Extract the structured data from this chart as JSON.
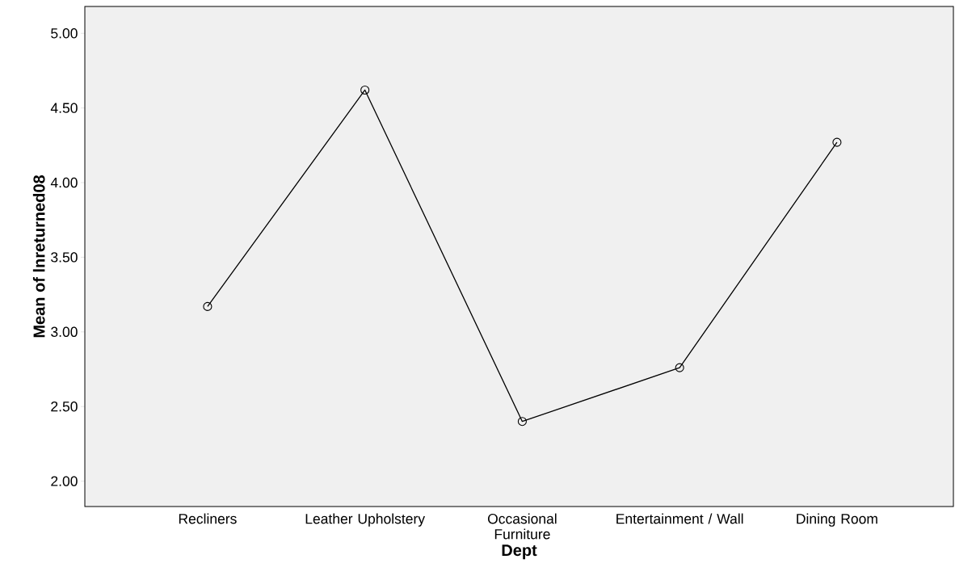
{
  "chart_data": {
    "type": "line",
    "xlabel": "Dept",
    "ylabel": "Mean of lnreturned08",
    "categories": [
      "Recliners",
      "Leather Upholstery",
      "Occasional Furniture",
      "Entertainment / Wall",
      "Dining Room"
    ],
    "series": [
      {
        "color": "#000000",
        "values": [
          3.17,
          4.62,
          2.4,
          2.76,
          4.27
        ]
      }
    ],
    "ylim": [
      1.83,
      5.18
    ],
    "yticks": [
      {
        "value": 2,
        "label": "2.00"
      },
      {
        "value": 2.5,
        "label": "2.50"
      },
      {
        "value": 3,
        "label": "3.00"
      },
      {
        "value": 3.5,
        "label": "3.50"
      },
      {
        "value": 4,
        "label": "4.00"
      },
      {
        "value": 4.5,
        "label": "4.50"
      },
      {
        "value": 5,
        "label": "5.00"
      }
    ],
    "marker": "circle",
    "line_style": "solid"
  }
}
